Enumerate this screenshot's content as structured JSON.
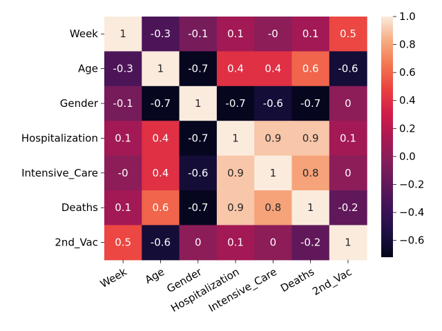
{
  "chart_data": {
    "type": "heatmap",
    "rows": [
      "Week",
      "Age",
      "Gender",
      "Hospitalization",
      "Intensive_Care",
      "Deaths",
      "2nd_Vac"
    ],
    "columns": [
      "Week",
      "Age",
      "Gender",
      "Hospitalization",
      "Intensive_Care",
      "Deaths",
      "2nd_Vac"
    ],
    "values": [
      [
        1,
        -0.3,
        -0.1,
        0.1,
        0,
        0.1,
        0.5
      ],
      [
        -0.3,
        1,
        -0.7,
        0.4,
        0.4,
        0.6,
        -0.6
      ],
      [
        -0.1,
        -0.7,
        1,
        -0.7,
        -0.6,
        -0.7,
        0
      ],
      [
        0.1,
        0.4,
        -0.7,
        1,
        0.9,
        0.9,
        0.1
      ],
      [
        0,
        0.4,
        -0.6,
        0.9,
        1,
        0.8,
        0
      ],
      [
        0.1,
        0.6,
        -0.7,
        0.9,
        0.8,
        1,
        -0.2
      ],
      [
        0.5,
        -0.6,
        0,
        0.1,
        0,
        -0.2,
        1
      ]
    ],
    "cell_labels": [
      [
        "1",
        "-0.3",
        "-0.1",
        "0.1",
        "-0",
        "0.1",
        "0.5"
      ],
      [
        "-0.3",
        "1",
        "-0.7",
        "0.4",
        "0.4",
        "0.6",
        "-0.6"
      ],
      [
        "-0.1",
        "-0.7",
        "1",
        "-0.7",
        "-0.6",
        "-0.7",
        "0"
      ],
      [
        "0.1",
        "0.4",
        "-0.7",
        "1",
        "0.9",
        "0.9",
        "0.1"
      ],
      [
        "-0",
        "0.4",
        "-0.6",
        "0.9",
        "1",
        "0.8",
        "0"
      ],
      [
        "0.1",
        "0.6",
        "-0.7",
        "0.9",
        "0.8",
        "1",
        "-0.2"
      ],
      [
        "0.5",
        "-0.6",
        "0",
        "0.1",
        "0",
        "-0.2",
        "1"
      ]
    ],
    "colorbar": {
      "range": [
        -0.72,
        1.0
      ],
      "ticks": [
        1.0,
        0.8,
        0.6,
        0.4,
        0.2,
        0.0,
        -0.2,
        -0.4,
        -0.6
      ],
      "tick_labels": [
        "1.0",
        "0.8",
        "0.6",
        "0.4",
        "0.2",
        "0.0",
        "−0.2",
        "−0.4",
        "−0.6"
      ]
    },
    "colormap": "rocket",
    "title": "",
    "xlabel": "",
    "ylabel": "",
    "annotated": true
  }
}
